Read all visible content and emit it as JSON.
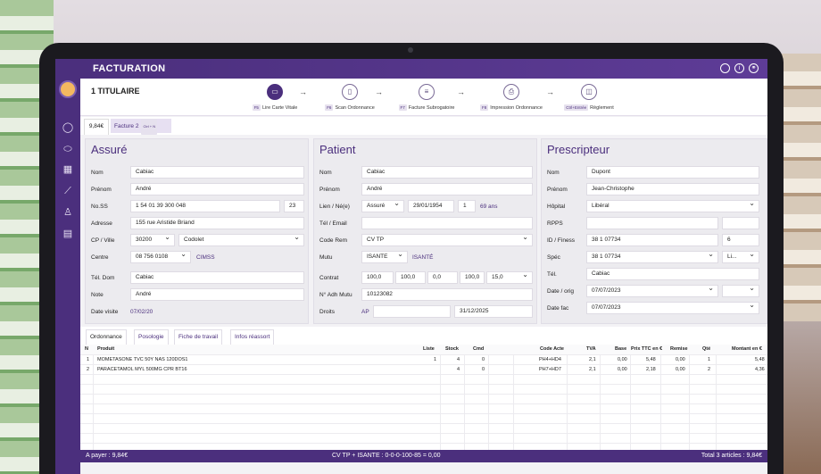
{
  "app": {
    "title": "FACTURATION"
  },
  "header": {
    "title": "1 TITULAIRE"
  },
  "steps": [
    {
      "key": "F5",
      "label": "Lire Carte Vitale",
      "icon": "card-reader-icon"
    },
    {
      "key": "F6",
      "label": "Scan Ordonnance",
      "icon": "scan-document-icon"
    },
    {
      "key": "F7",
      "label": "Facture Subrogatoire",
      "icon": "invoice-icon"
    },
    {
      "key": "F8",
      "label": "Impression Ordonnance",
      "icon": "printer-icon"
    },
    {
      "key": "Ctrl+Entrée",
      "label": "Règlement",
      "icon": "payment-icon"
    }
  ],
  "tabs": {
    "amount": "9,84€",
    "invoice_label": "Facture 2",
    "invoice_key": "Ctrl + N"
  },
  "assure": {
    "title": "Assuré",
    "labels": {
      "nom": "Nom",
      "prenom": "Prénom",
      "noss": "No.SS",
      "adresse": "Adresse",
      "cp": "CP / Ville",
      "centre": "Centre",
      "tel": "Tél. Dom",
      "note": "Note",
      "visite": "Date visite"
    },
    "nom": "Cabiac",
    "prenom": "André",
    "noss": "1 54 01 39 300 048",
    "noss_key": "23",
    "adresse": "155 rue Aristide Briand",
    "cp": "30200",
    "ville": "Codolet",
    "centre": "08 756 0108",
    "centre_tag": "CIMSS",
    "tel": "Cabiac",
    "note": "André",
    "visite": "07/02/20"
  },
  "patient": {
    "title": "Patient",
    "labels": {
      "nom": "Nom",
      "prenom": "Prénom",
      "lien": "Lien / Né(e)",
      "tel": "Tél / Email",
      "coderem": "Code Rem",
      "mutu": "Mutu",
      "contrat": "Contrat",
      "adh": "N° Adh Mutu",
      "droits": "Droits"
    },
    "nom": "Cabiac",
    "prenom": "André",
    "lien": "Assuré",
    "naissance": "29/01/1954",
    "rang": "1",
    "age": "69 ans",
    "coderem": "CV TP",
    "mutu": "ISANTE",
    "mutu_tag": "ISANTÉ",
    "contrat": [
      "100,0",
      "100,0",
      "0,0",
      "100,0",
      "15,0"
    ],
    "adh": "10123082",
    "droits_tag": "AP",
    "droits_fin": "31/12/2025"
  },
  "prescripteur": {
    "title": "Prescripteur",
    "labels": {
      "nom": "Nom",
      "prenom": "Prénom",
      "hopital": "Hôpital",
      "rpps": "RPPS",
      "finess": "ID / Finess",
      "spec": "Spéc",
      "tel": "Tél.",
      "date_orig": "Date / orig",
      "date_fac": "Date fac"
    },
    "nom": "Dupont",
    "prenom": "Jean-Christophe",
    "hopital": "Libéral",
    "finess": "38 1 07734",
    "finess_key": "6",
    "spec": "38 1 07734",
    "spec_short": "Li...",
    "tel": "Cabiac",
    "date_orig": "07/07/2023",
    "date_fac": "07/07/2023"
  },
  "bottom_tabs": [
    "Ordonnance",
    "Posologie",
    "Fiche de travail",
    "Infos réassort"
  ],
  "table": {
    "headers": [
      "N",
      "Produit",
      "Liste",
      "Stock",
      "Cmd",
      "Code Acte",
      "TVA",
      "Base",
      "Prix TTC en €",
      "Remise",
      "Qté",
      "Montant en €"
    ],
    "rows": [
      [
        "1",
        "MOMETASONE TVC 50Y NAS 120DOS1",
        "1",
        "4",
        "0",
        "PH4+HD4",
        "2,1",
        "0,00",
        "5,48",
        "0,00",
        "1",
        "5,48"
      ],
      [
        "2",
        "PARACETAMOL MYL 500MG CPR BT16",
        "",
        "4",
        "0",
        "PH7+HD7",
        "2,1",
        "0,00",
        "2,18",
        "0,00",
        "2",
        "4,36"
      ]
    ]
  },
  "footer": {
    "left": "A payer : 9,84€",
    "center": "CV TP + ISANTE : 0-0-0-100-85 = 0,00",
    "right": "Total 3 articles : 9,84€"
  },
  "colors": {
    "primary": "#4b2f7d",
    "panel": "#ecebef"
  }
}
